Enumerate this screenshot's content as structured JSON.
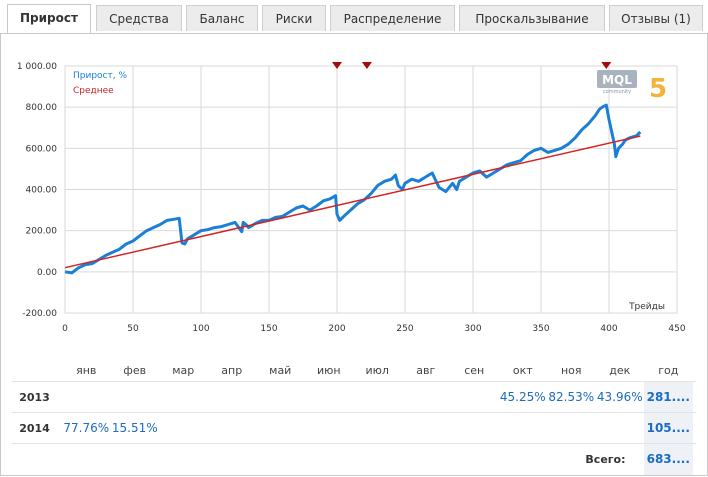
{
  "tabs": [
    {
      "label": "Прирост",
      "active": true
    },
    {
      "label": "Средства",
      "active": false
    },
    {
      "label": "Баланс",
      "active": false
    },
    {
      "label": "Риски",
      "active": false
    },
    {
      "label": "Распределение",
      "active": false
    },
    {
      "label": "Проскальзывание",
      "active": false
    },
    {
      "label": "Отзывы (1)",
      "active": false
    }
  ],
  "logo": {
    "text": "MQL",
    "number": "5",
    "sub": "community"
  },
  "chart_data": {
    "type": "line",
    "title": "",
    "xlabel": "Трейды",
    "ylabel": "",
    "xlim": [
      0,
      450
    ],
    "ylim": [
      -200,
      1000
    ],
    "x_ticks": [
      "0",
      "50",
      "100",
      "150",
      "200",
      "250",
      "300",
      "350",
      "400",
      "450"
    ],
    "y_ticks": [
      "1 000.00",
      "800.00",
      "600.00",
      "400.00",
      "200.00",
      "0.00",
      "-200.00"
    ],
    "legend": [
      "Прирост, %",
      "Среднее"
    ],
    "legend_position": "top-left",
    "markers_x": [
      200,
      222,
      398
    ],
    "series": [
      {
        "name": "Прирост, %",
        "color": "#1a7fd6",
        "x": [
          0,
          5,
          10,
          15,
          20,
          25,
          30,
          35,
          40,
          45,
          50,
          55,
          60,
          65,
          70,
          75,
          80,
          84,
          86,
          88,
          90,
          95,
          100,
          105,
          110,
          115,
          120,
          125,
          130,
          131,
          133,
          135,
          140,
          145,
          150,
          155,
          160,
          165,
          170,
          175,
          180,
          185,
          190,
          195,
          199,
          200,
          202,
          205,
          210,
          215,
          220,
          225,
          230,
          235,
          240,
          243,
          245,
          248,
          250,
          255,
          260,
          265,
          270,
          275,
          280,
          285,
          288,
          290,
          295,
          300,
          305,
          310,
          315,
          320,
          325,
          330,
          335,
          340,
          345,
          350,
          355,
          360,
          365,
          370,
          375,
          380,
          385,
          390,
          393,
          395,
          398,
          400,
          404,
          405,
          407,
          410,
          412,
          415,
          420,
          423
        ],
        "values": [
          0,
          -5,
          20,
          35,
          40,
          60,
          80,
          95,
          110,
          135,
          150,
          175,
          200,
          215,
          230,
          250,
          255,
          260,
          140,
          135,
          160,
          180,
          200,
          205,
          215,
          220,
          230,
          240,
          195,
          240,
          230,
          215,
          235,
          250,
          250,
          265,
          270,
          290,
          310,
          320,
          300,
          320,
          345,
          355,
          370,
          280,
          250,
          270,
          300,
          330,
          350,
          380,
          420,
          440,
          450,
          470,
          420,
          400,
          430,
          450,
          440,
          460,
          480,
          410,
          390,
          430,
          400,
          440,
          460,
          480,
          490,
          460,
          480,
          500,
          520,
          530,
          540,
          570,
          590,
          600,
          580,
          590,
          600,
          620,
          650,
          690,
          720,
          760,
          790,
          800,
          810,
          740,
          620,
          560,
          600,
          620,
          640,
          650,
          660,
          680
        ]
      },
      {
        "name": "Среднее",
        "color": "#d42323",
        "x": [
          0,
          423
        ],
        "values": [
          20,
          660
        ]
      }
    ]
  },
  "table": {
    "months": [
      "янв",
      "фев",
      "мар",
      "апр",
      "май",
      "июн",
      "июл",
      "авг",
      "сен",
      "окт",
      "ноя",
      "дек",
      "год"
    ],
    "rows": [
      {
        "year": "2013",
        "values": [
          "",
          "",
          "",
          "",
          "",
          "",
          "",
          "",
          "",
          "45.25%",
          "82.53%",
          "43.96%"
        ],
        "total": "281...."
      },
      {
        "year": "2014",
        "values": [
          "77.76%",
          "15.51%",
          "",
          "",
          "",
          "",
          "",
          "",
          "",
          "",
          "",
          ""
        ],
        "total": "105...."
      }
    ],
    "grand_total_label": "Всего:",
    "grand_total": "683...."
  }
}
